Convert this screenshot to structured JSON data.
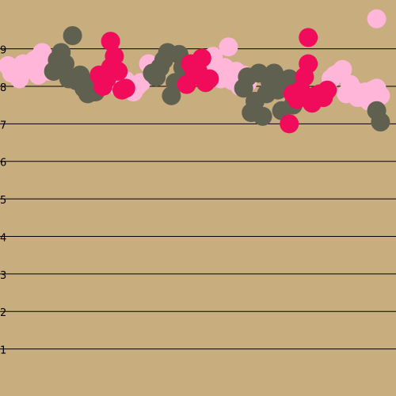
{
  "chart_data": {
    "type": "scatter",
    "title": "",
    "xlabel": "",
    "ylabel": "",
    "ylim": [
      0,
      10.3
    ],
    "xlim": [
      0,
      100
    ],
    "grid": true,
    "y_ticks": [
      "1",
      "2",
      "3",
      "4",
      "5",
      "6",
      "7",
      "8",
      "9"
    ],
    "colors": {
      "background": "#c8ad7f",
      "gridline": "#000000"
    },
    "series": [
      {
        "color": "#ffb6d9",
        "points": [
          [
            0,
            8.55
          ],
          [
            1,
            8.35
          ],
          [
            2,
            8.4
          ],
          [
            3,
            8.2
          ],
          [
            4,
            8.6
          ],
          [
            5,
            8.5
          ],
          [
            6,
            8.45
          ],
          [
            7,
            8.7
          ],
          [
            8,
            8.3
          ],
          [
            9,
            8.9
          ],
          [
            10,
            8.75
          ],
          [
            11,
            8.4
          ],
          [
            28,
            8.1
          ],
          [
            29,
            8.0
          ],
          [
            30,
            7.95
          ],
          [
            31,
            8.15
          ],
          [
            32,
            8.05
          ],
          [
            33,
            7.85
          ],
          [
            34,
            8.0
          ],
          [
            35,
            8.1
          ],
          [
            37,
            8.6
          ],
          [
            38,
            8.5
          ],
          [
            53,
            8.55
          ],
          [
            54,
            8.8
          ],
          [
            55,
            8.35
          ],
          [
            56,
            8.2
          ],
          [
            57,
            8.5
          ],
          [
            58,
            9.05
          ],
          [
            59,
            8.15
          ],
          [
            60,
            8.4
          ],
          [
            61,
            8.0
          ],
          [
            62,
            8.3
          ],
          [
            63,
            8.1
          ],
          [
            85,
            8.2
          ],
          [
            86,
            8.3
          ],
          [
            87,
            8.35
          ],
          [
            88,
            8.45
          ],
          [
            89,
            7.8
          ],
          [
            90,
            8.05
          ],
          [
            91,
            7.9
          ],
          [
            92,
            7.7
          ],
          [
            93,
            7.75
          ],
          [
            94,
            7.85
          ],
          [
            95,
            7.6
          ],
          [
            96,
            7.9
          ],
          [
            97,
            7.95
          ],
          [
            98,
            7.75
          ],
          [
            97,
            9.8
          ]
        ]
      },
      {
        "color": "#5f604f",
        "points": [
          [
            12,
            8.4
          ],
          [
            13,
            8.7
          ],
          [
            14,
            8.9
          ],
          [
            15,
            8.6
          ],
          [
            16,
            8.2
          ],
          [
            17,
            9.35
          ],
          [
            18,
            8.15
          ],
          [
            19,
            8.3
          ],
          [
            20,
            7.95
          ],
          [
            21,
            7.8
          ],
          [
            22,
            8.05
          ],
          [
            23,
            7.85
          ],
          [
            38,
            8.35
          ],
          [
            39,
            8.25
          ],
          [
            40,
            8.5
          ],
          [
            41,
            8.7
          ],
          [
            42,
            8.9
          ],
          [
            43,
            7.75
          ],
          [
            44,
            8.1
          ],
          [
            45,
            8.85
          ],
          [
            46,
            8.5
          ],
          [
            62,
            7.95
          ],
          [
            63,
            8.25
          ],
          [
            64,
            7.3
          ],
          [
            65,
            7.6
          ],
          [
            66,
            8.35
          ],
          [
            67,
            7.2
          ],
          [
            68,
            7.8
          ],
          [
            69,
            8.1
          ],
          [
            70,
            8.35
          ],
          [
            71,
            7.9
          ],
          [
            72,
            7.35
          ],
          [
            73,
            8.0
          ],
          [
            74,
            8.2
          ],
          [
            75,
            7.5
          ],
          [
            97,
            7.35
          ],
          [
            98,
            7.05
          ]
        ]
      },
      {
        "color": "#f00c5b",
        "points": [
          [
            24,
            8.3
          ],
          [
            25,
            8.0
          ],
          [
            26,
            8.2
          ],
          [
            27,
            9.2
          ],
          [
            27,
            8.5
          ],
          [
            28,
            8.8
          ],
          [
            29,
            8.4
          ],
          [
            30,
            7.9
          ],
          [
            31,
            7.95
          ],
          [
            47,
            8.05
          ],
          [
            48,
            8.6
          ],
          [
            49,
            8.3
          ],
          [
            50,
            8.4
          ],
          [
            51,
            8.75
          ],
          [
            52,
            8.1
          ],
          [
            53,
            8.2
          ],
          [
            74,
            7.0
          ],
          [
            75,
            7.8
          ],
          [
            76,
            7.65
          ],
          [
            77,
            7.9
          ],
          [
            78,
            8.25
          ],
          [
            79,
            9.3
          ],
          [
            79,
            8.6
          ],
          [
            80,
            7.55
          ],
          [
            81,
            7.75
          ],
          [
            82,
            7.8
          ],
          [
            83,
            7.7
          ],
          [
            84,
            7.9
          ]
        ]
      }
    ]
  }
}
